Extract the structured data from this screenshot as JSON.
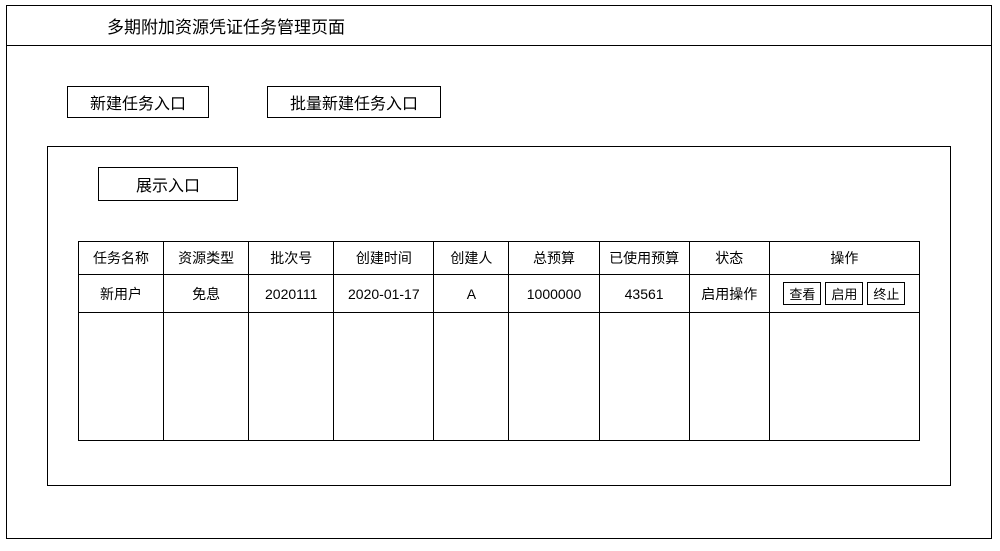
{
  "page": {
    "title": "多期附加资源凭证任务管理页面"
  },
  "buttons": {
    "new_task": "新建任务入口",
    "batch_new_task": "批量新建任务入口",
    "display_entry": "展示入口"
  },
  "table": {
    "columns": {
      "task_name": "任务名称",
      "resource_type": "资源类型",
      "batch_no": "批次号",
      "create_time": "创建时间",
      "creator": "创建人",
      "total_budget": "总预算",
      "used_budget": "已使用预算",
      "status": "状态",
      "operations": "操作"
    },
    "column_widths": {
      "task_name": 85,
      "resource_type": 85,
      "batch_no": 85,
      "create_time": 100,
      "creator": 75,
      "total_budget": 90,
      "used_budget": 90,
      "status": 80,
      "operations": 150
    },
    "rows": [
      {
        "task_name": "新用户",
        "resource_type": "免息",
        "batch_no": "2020111",
        "create_time": "2020-01-17",
        "creator": "A",
        "total_budget": "1000000",
        "used_budget": "43561",
        "status": "启用操作"
      }
    ],
    "op_labels": {
      "view": "查看",
      "enable": "启用",
      "stop": "终止"
    }
  },
  "style": {
    "border_color": "#000000",
    "background_color": "#ffffff",
    "text_color": "#000000",
    "title_fontsize": 17,
    "button_fontsize": 16,
    "cell_fontsize": 14,
    "op_btn_fontsize": 13
  }
}
